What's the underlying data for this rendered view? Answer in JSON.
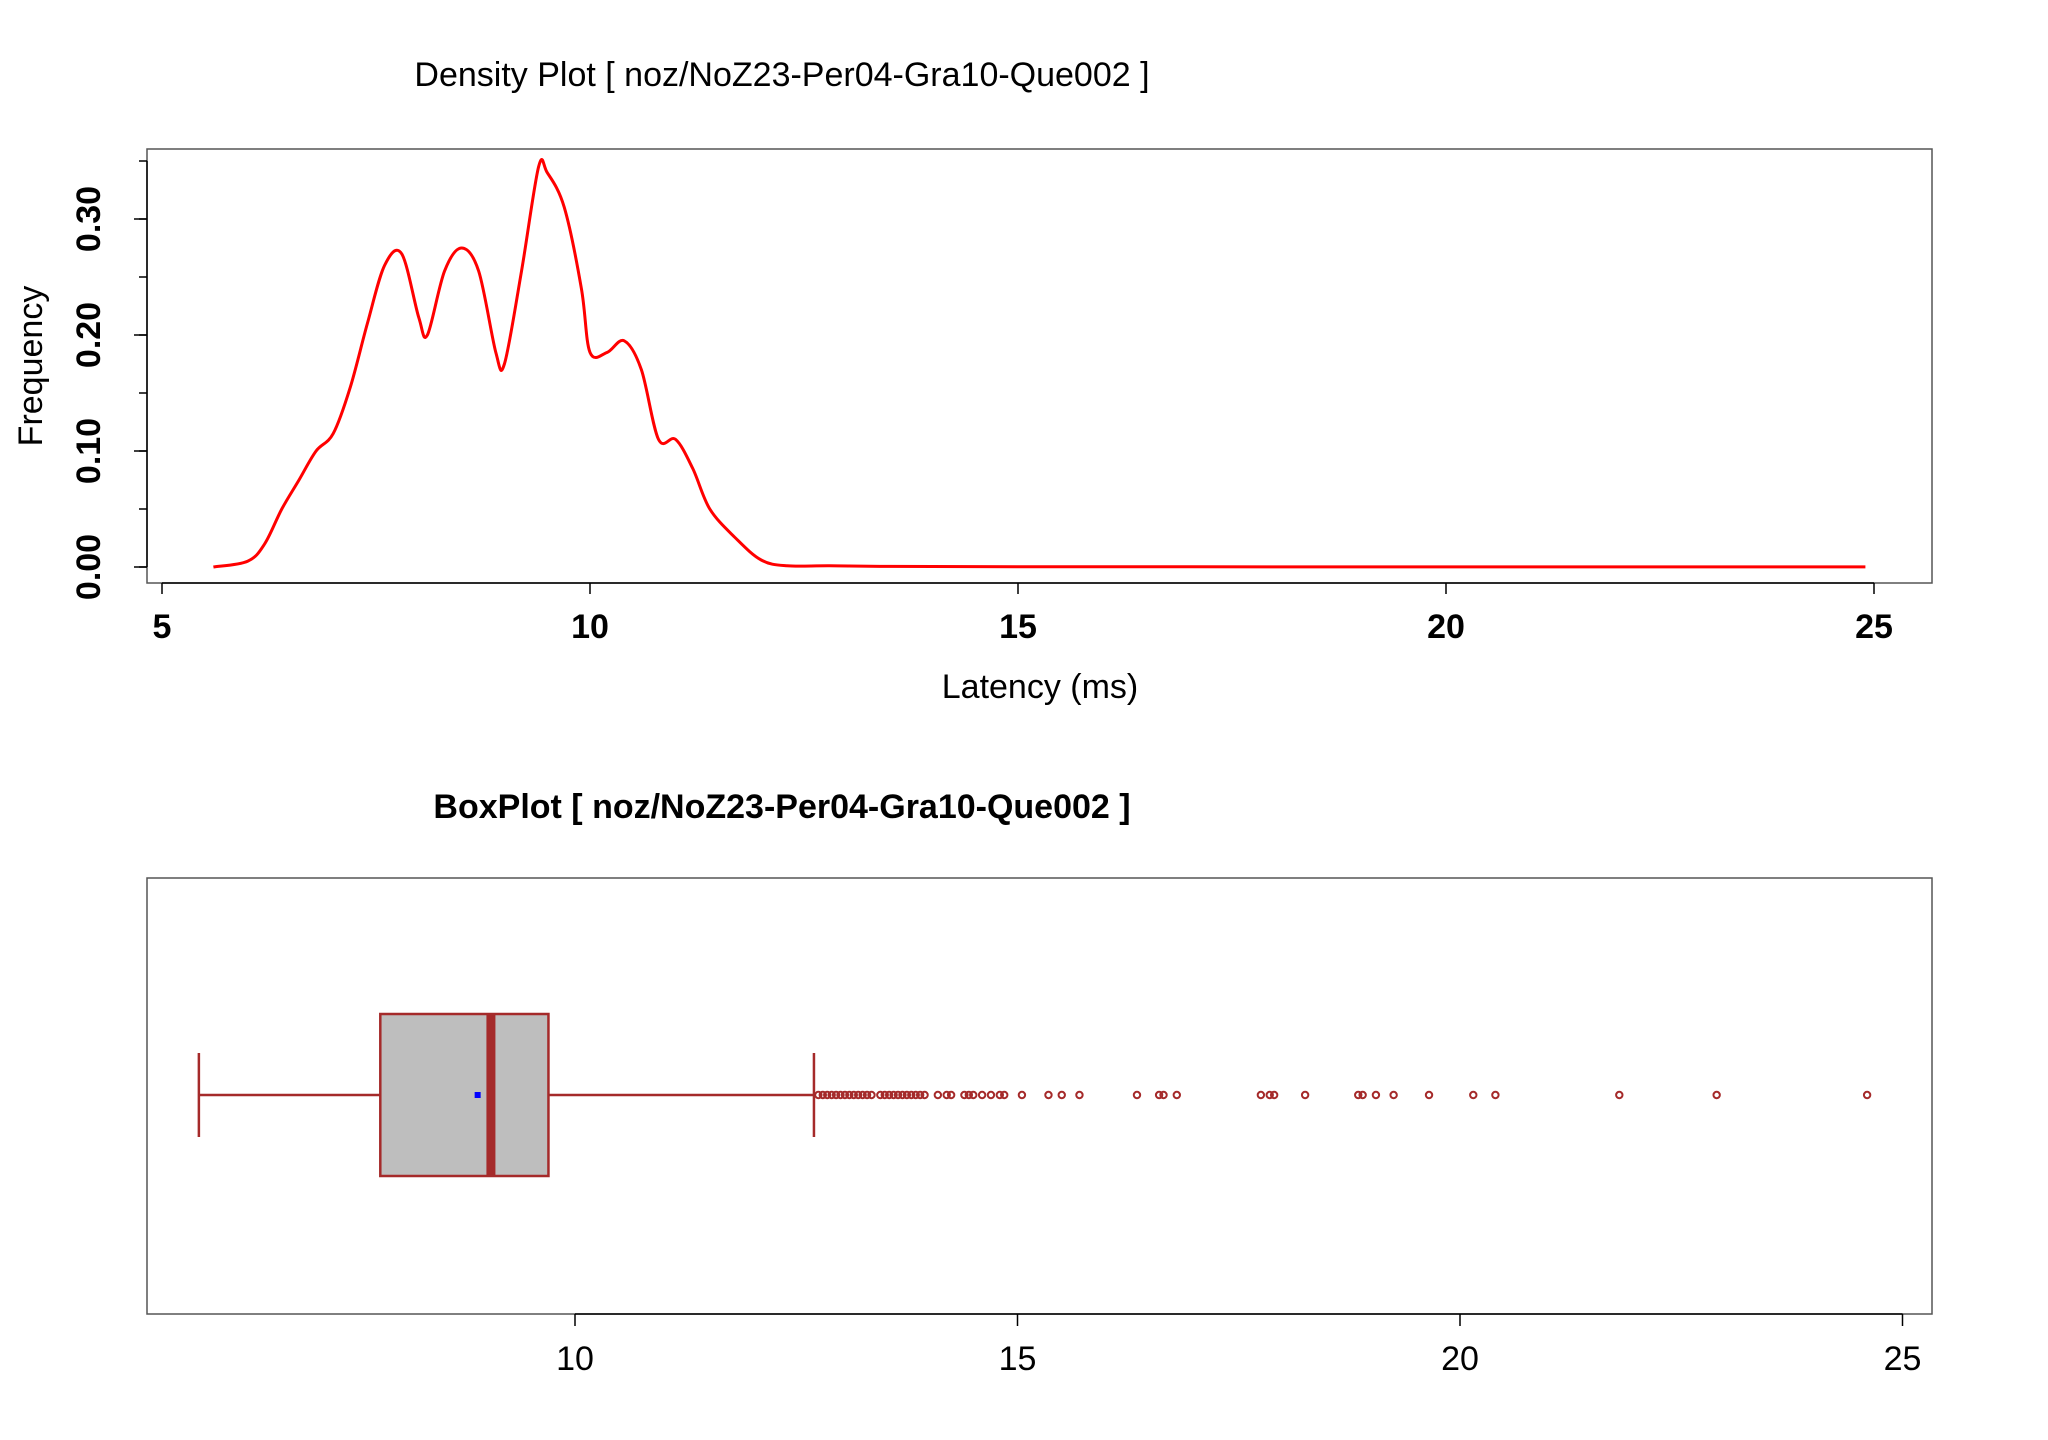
{
  "chart_data": [
    {
      "type": "line",
      "title": "Density Plot [ noz/NoZ23-Per04-Gra10-Que002 ]",
      "xlabel": "Latency (ms)",
      "ylabel": "Frequency",
      "xlim": [
        5,
        25
      ],
      "ylim": [
        0,
        0.35
      ],
      "xticks": [
        5,
        10,
        15,
        20,
        25
      ],
      "xtick_labels": [
        "5",
        "10",
        "15",
        "20",
        "25"
      ],
      "yticks": [
        0,
        0.1,
        0.2,
        0.3
      ],
      "ytick_labels": [
        "0.00",
        "0.10",
        "0.20",
        "0.30"
      ],
      "series_color": "#ff0000",
      "x": [
        5.6,
        6.0,
        6.2,
        6.4,
        6.6,
        6.8,
        7.0,
        7.2,
        7.4,
        7.6,
        7.8,
        8.0,
        8.1,
        8.3,
        8.5,
        8.7,
        8.9,
        9.0,
        9.2,
        9.4,
        9.5,
        9.7,
        9.9,
        10.0,
        10.2,
        10.4,
        10.6,
        10.8,
        11.0,
        11.2,
        11.4,
        11.7,
        12.0,
        12.3,
        12.8,
        13.5,
        15.0,
        17.0,
        20.0,
        23.0,
        24.9
      ],
      "y": [
        0.0,
        0.005,
        0.02,
        0.05,
        0.075,
        0.1,
        0.115,
        0.155,
        0.21,
        0.26,
        0.27,
        0.215,
        0.2,
        0.255,
        0.275,
        0.255,
        0.185,
        0.175,
        0.255,
        0.345,
        0.34,
        0.31,
        0.24,
        0.185,
        0.185,
        0.195,
        0.17,
        0.11,
        0.11,
        0.085,
        0.05,
        0.025,
        0.006,
        0.001,
        0.001,
        0.0005,
        0.0003,
        0.0002,
        0.0001,
        0.0001,
        0.0001
      ]
    },
    {
      "type": "boxplot",
      "title": "BoxPlot [ noz/NoZ23-Per04-Gra10-Que002 ]",
      "xlim": [
        5.5,
        25.3
      ],
      "xticks": [
        10,
        15,
        20,
        25
      ],
      "xtick_labels": [
        "10",
        "15",
        "20",
        "25"
      ],
      "whisker_low": 5.75,
      "q1": 7.8,
      "median": 9.05,
      "mean": 8.9,
      "q3": 9.7,
      "whisker_high": 12.7,
      "box_color": "#a52a2a",
      "box_fill": "#bebebe",
      "mean_color": "#0000ff",
      "outliers": [
        12.75,
        12.8,
        12.85,
        12.9,
        12.95,
        13.0,
        13.05,
        13.1,
        13.15,
        13.2,
        13.25,
        13.3,
        13.35,
        13.45,
        13.5,
        13.55,
        13.6,
        13.65,
        13.7,
        13.75,
        13.8,
        13.85,
        13.9,
        13.95,
        14.1,
        14.2,
        14.25,
        14.4,
        14.45,
        14.5,
        14.6,
        14.7,
        14.8,
        14.85,
        15.05,
        15.35,
        15.5,
        15.7,
        16.35,
        16.6,
        16.65,
        16.8,
        17.75,
        17.85,
        17.9,
        18.25,
        18.85,
        18.9,
        19.05,
        19.25,
        19.65,
        20.15,
        20.4,
        21.8,
        22.9,
        24.6
      ]
    }
  ]
}
